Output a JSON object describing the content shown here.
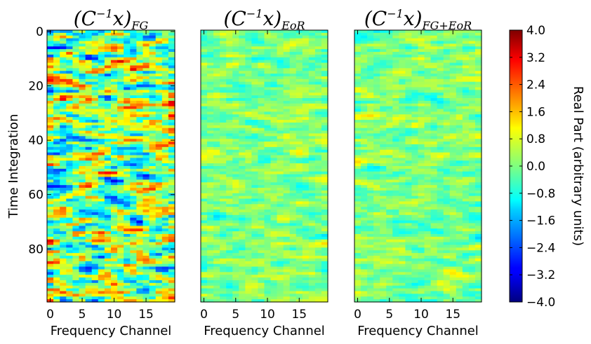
{
  "chart_data": [
    {
      "type": "heatmap",
      "title": "(C^{-1}x)_{FG}",
      "title_base": "(C",
      "title_sup": "−1",
      "title_mid": "x)",
      "title_sub": "FG",
      "xlabel": "Frequency Channel",
      "ylabel": "Time Integration",
      "n_x": 20,
      "n_y": 100,
      "xticks": [
        0,
        5,
        10,
        15
      ],
      "yticks": [
        0,
        20,
        40,
        60,
        80
      ],
      "amplitude": 2.6,
      "seed": 11
    },
    {
      "type": "heatmap",
      "title": "(C^{-1}x)_{EoR}",
      "title_base": "(C",
      "title_sup": "−1",
      "title_mid": "x)",
      "title_sub": "EoR",
      "xlabel": "Frequency Channel",
      "ylabel": "",
      "n_x": 20,
      "n_y": 100,
      "xticks": [
        0,
        5,
        10,
        15
      ],
      "yticks": [],
      "amplitude": 0.9,
      "seed": 23
    },
    {
      "type": "heatmap",
      "title": "(C^{-1}x)_{FG+EoR}",
      "title_base": "(C",
      "title_sup": "−1",
      "title_mid": "x)",
      "title_sub": "FG+EoR",
      "xlabel": "Frequency Channel",
      "ylabel": "",
      "n_x": 20,
      "n_y": 100,
      "xticks": [
        0,
        5,
        10,
        15
      ],
      "yticks": [],
      "amplitude": 0.9,
      "seed": 37
    }
  ],
  "colorbar": {
    "label": "Real Part (arbitrary units)",
    "range": [
      -4.0,
      4.0
    ],
    "ticks": [
      "4.0",
      "3.2",
      "2.4",
      "1.6",
      "0.8",
      "0.0",
      "−0.8",
      "−1.6",
      "−2.4",
      "−3.2",
      "−4.0"
    ],
    "colormap": "jet"
  }
}
